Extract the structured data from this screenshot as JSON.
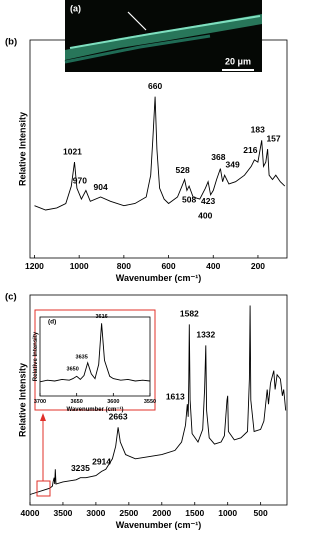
{
  "image_panel": {
    "label": "(a)",
    "scale_bar": "20 μm"
  },
  "chart_data": [
    {
      "type": "line",
      "panel_label": "(b)",
      "x_label": "Wavenumber (cm⁻¹)",
      "y_label": "Relative Intensity",
      "xlim": [
        1220,
        70
      ],
      "xticks": [
        1200,
        1000,
        800,
        600,
        400,
        200
      ],
      "ylim": [
        0,
        100
      ],
      "color": "#000000",
      "x": [
        1200,
        1150,
        1100,
        1060,
        1035,
        1021,
        1010,
        990,
        970,
        950,
        904,
        860,
        800,
        750,
        700,
        680,
        670,
        660,
        652,
        640,
        620,
        600,
        560,
        540,
        528,
        518,
        508,
        490,
        460,
        435,
        423,
        412,
        400,
        385,
        368,
        358,
        349,
        330,
        300,
        260,
        230,
        216,
        200,
        190,
        183,
        175,
        165,
        157,
        150,
        135,
        120,
        100,
        80
      ],
      "values": [
        24,
        22,
        23,
        25,
        33,
        44,
        32,
        27,
        31,
        26,
        28,
        26,
        24,
        25,
        28,
        38,
        55,
        74,
        50,
        32,
        27,
        25,
        28,
        33,
        36,
        31,
        33,
        28,
        27,
        32,
        35,
        29,
        31,
        36,
        41,
        35,
        38,
        34,
        35,
        38,
        42,
        45,
        44,
        50,
        54,
        42,
        44,
        50,
        38,
        36,
        38,
        35,
        33
      ],
      "annotations": [
        1021,
        970,
        904,
        660,
        528,
        508,
        423,
        400,
        368,
        349,
        216,
        183,
        157
      ]
    },
    {
      "type": "line",
      "panel_label": "(c)",
      "x_label": "Wavenumber (cm⁻¹)",
      "y_label": "Relative Intensity",
      "xlim": [
        4000,
        100
      ],
      "xticks": [
        4000,
        3500,
        3000,
        2500,
        2000,
        1500,
        1000,
        500
      ],
      "ylim": [
        0,
        100
      ],
      "color": "#000000",
      "x": [
        4000,
        3800,
        3700,
        3660,
        3650,
        3635,
        3625,
        3616,
        3605,
        3500,
        3300,
        3235,
        3150,
        3000,
        2914,
        2850,
        2750,
        2700,
        2663,
        2630,
        2550,
        2400,
        2200,
        2000,
        1800,
        1700,
        1640,
        1613,
        1600,
        1590,
        1582,
        1570,
        1540,
        1450,
        1380,
        1350,
        1332,
        1320,
        1280,
        1200,
        1100,
        1050,
        1010,
        1000,
        990,
        900,
        800,
        700,
        670,
        660,
        650,
        600,
        500,
        450,
        400,
        380,
        350,
        300,
        280,
        250,
        200,
        170,
        150,
        120
      ],
      "values": [
        5,
        7,
        8,
        9,
        11,
        13,
        10,
        17,
        10,
        11,
        12,
        13,
        13,
        14,
        16,
        17,
        22,
        28,
        37,
        30,
        24,
        22,
        23,
        24,
        26,
        30,
        38,
        48,
        42,
        60,
        86,
        50,
        34,
        30,
        36,
        55,
        76,
        45,
        32,
        29,
        30,
        33,
        50,
        52,
        35,
        31,
        32,
        35,
        60,
        95,
        50,
        35,
        36,
        40,
        55,
        48,
        58,
        64,
        55,
        62,
        60,
        52,
        55,
        45
      ],
      "annotations": [
        3235,
        2914,
        2663,
        1613,
        1582,
        1332
      ]
    },
    {
      "type": "line",
      "panel_label": "(d)",
      "x_label": "Wavenumber (cm⁻¹)",
      "y_label": "Relative Intensity",
      "xlim": [
        3700,
        3550
      ],
      "xticks": [
        3700,
        3650,
        3600,
        3550
      ],
      "ylim": [
        0,
        100
      ],
      "color": "#000000",
      "x": [
        3700,
        3690,
        3680,
        3670,
        3660,
        3655,
        3650,
        3645,
        3640,
        3635,
        3630,
        3625,
        3620,
        3616,
        3612,
        3605,
        3600,
        3590,
        3580,
        3570,
        3560,
        3550
      ],
      "values": [
        18,
        20,
        19,
        21,
        20,
        22,
        25,
        21,
        26,
        42,
        28,
        22,
        40,
        92,
        45,
        25,
        22,
        20,
        21,
        19,
        20,
        19
      ],
      "annotations": [
        3650,
        3635,
        3616
      ]
    }
  ]
}
